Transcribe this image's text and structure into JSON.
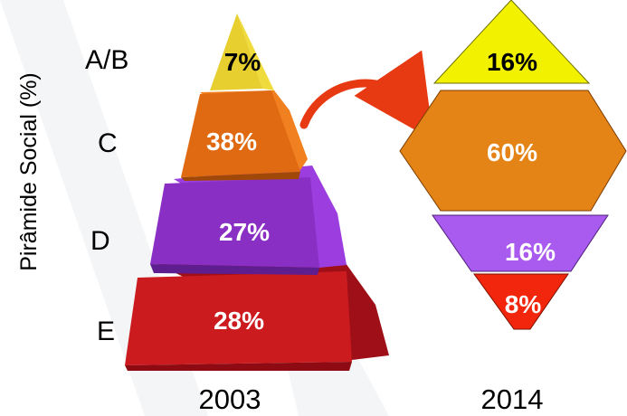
{
  "y_axis_label": "Pirâmide Social (%)",
  "classes": [
    "A/B",
    "C",
    "D",
    "E"
  ],
  "years": [
    "2003",
    "2014"
  ],
  "pyramid_2003": [
    {
      "class": "A/B",
      "percent": "7%",
      "color": "#E6CF2E"
    },
    {
      "class": "C",
      "percent": "38%",
      "color": "#E06A12"
    },
    {
      "class": "D",
      "percent": "27%",
      "color": "#8A2FC4"
    },
    {
      "class": "E",
      "percent": "28%",
      "color": "#CC1B1F"
    }
  ],
  "shape_2014": [
    {
      "class": "A/B",
      "percent": "16%",
      "color": "#F2F200"
    },
    {
      "class": "C",
      "percent": "60%",
      "color": "#E58416"
    },
    {
      "class": "D",
      "percent": "16%",
      "color": "#A95BEF"
    },
    {
      "class": "E",
      "percent": "8%",
      "color": "#F2260C"
    }
  ],
  "arrow_color": "#E83A12"
}
